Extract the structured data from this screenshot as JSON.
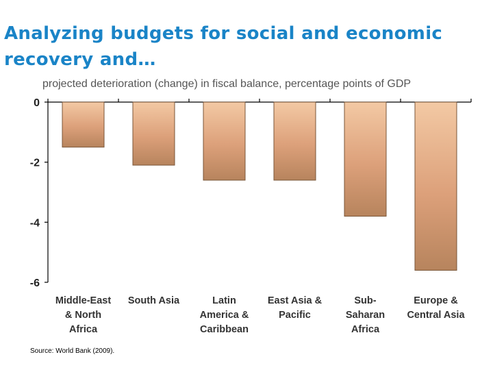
{
  "slide": {
    "title": "Analyzing budgets for social and economic recovery and…",
    "source": "Source: World Bank (2009)."
  },
  "chart_data": {
    "type": "bar",
    "title": "projected deterioration (change) in fiscal balance, percentage points of GDP",
    "xlabel": "",
    "ylabel": "",
    "categories": [
      [
        "Middle-East",
        "& North",
        "Africa"
      ],
      [
        "South Asia"
      ],
      [
        "Latin",
        "America &",
        "Caribbean"
      ],
      [
        "East Asia &",
        "Pacific"
      ],
      [
        "Sub-",
        "Saharan",
        "Africa"
      ],
      [
        "Europe &",
        "Central Asia"
      ]
    ],
    "values": [
      -1.5,
      -2.1,
      -2.6,
      -2.6,
      -3.8,
      -5.6
    ],
    "ylim": [
      -6,
      0
    ],
    "yticks": [
      0,
      -2,
      -4,
      -6
    ],
    "grid": false,
    "legend": "none",
    "colors": {
      "bar_top": "#f3c9a4",
      "bar_mid": "#dca07a",
      "bar_bottom": "#b7845d",
      "axis": "#000000",
      "title": "#1a84c7"
    }
  }
}
